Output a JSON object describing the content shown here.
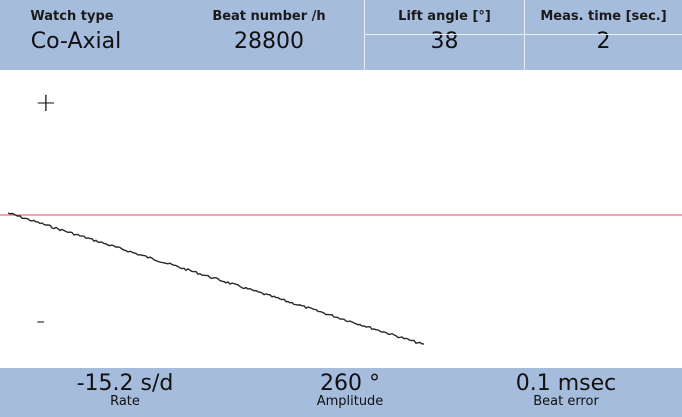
{
  "header": {
    "watch_type": {
      "label": "Watch type",
      "value": "Co-Axial"
    },
    "beat_number": {
      "label": "Beat number /h",
      "value": "28800"
    },
    "lift_angle": {
      "label": "Lift angle [°]",
      "value": "38"
    },
    "meas_time": {
      "label": "Meas. time [sec.]",
      "value": "2"
    }
  },
  "plot": {
    "plus_sign": "+",
    "minus_sign": "-",
    "reference_line_color": "#e84a5f",
    "trace_color": "#2a2a2a"
  },
  "footer": {
    "rate": {
      "value": "-15.2 s/d",
      "label": "Rate"
    },
    "amplitude": {
      "value": "260 °",
      "label": "Amplitude"
    },
    "beat_error": {
      "value": "0.1 msec",
      "label": "Beat error"
    }
  },
  "colors": {
    "panel_bg": "#a6bcdc",
    "plot_bg": "#ffffff"
  }
}
